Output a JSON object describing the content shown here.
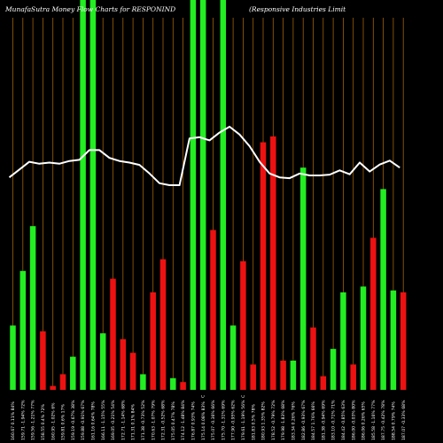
{
  "header": {
    "title_left": "MunafaSutra  Money Flow  Charts for RESPONIND",
    "title_right": "(Responsive   Industries Limit"
  },
  "chart_data": {
    "type": "bar",
    "title": "MunafaSutra Money Flow Charts for RESPONIND (Responsive Industries Limit",
    "colors": {
      "up": "#22ee22",
      "down": "#ee1111",
      "line": "#ffffff",
      "grid": "#a0620a",
      "background": "#000000"
    },
    "ylim": [
      0,
      100
    ],
    "bars": [
      {
        "label": "160.67 0.11% 84%",
        "value": 16.5,
        "dir": "up"
      },
      {
        "label": "159.71 -1.94% 72%",
        "value": 30.5,
        "dir": "up"
      },
      {
        "label": "159.56 -1.21% 77%",
        "value": 42.0,
        "dir": "up"
      },
      {
        "label": "158.55 0.4% 72%",
        "value": 15.0,
        "dir": "down"
      },
      {
        "label": "160.95 -1.02% 6%",
        "value": 1.0,
        "dir": "down"
      },
      {
        "label": "159.81 0.6% 17%",
        "value": 4.0,
        "dir": "down"
      },
      {
        "label": "159.19 -0.67% 38%",
        "value": 8.5,
        "dir": "up"
      },
      {
        "label": "159.88 -0.91% 67%",
        "value": 100,
        "dir": "up"
      },
      {
        "label": "161.16 0.64% 78%",
        "value": 100,
        "dir": "up"
      },
      {
        "label": "166.11 -1.15% 55%",
        "value": 14.5,
        "dir": "up"
      },
      {
        "label": "169.05 -0.21% 54%",
        "value": 28.5,
        "dir": "down"
      },
      {
        "label": "172.71 -1.14% 68%",
        "value": 13.0,
        "dir": "down"
      },
      {
        "label": "171.31 0.1% 84%",
        "value": 9.5,
        "dir": "down"
      },
      {
        "label": "171.38 -0.73% 52%",
        "value": 4.0,
        "dir": "up"
      },
      {
        "label": "170.63 -1.07% 79%",
        "value": 25.0,
        "dir": "down"
      },
      {
        "label": "172.31 -0.52% 68%",
        "value": 33.5,
        "dir": "down"
      },
      {
        "label": "175.05 0.47% 78%",
        "value": 3.0,
        "dir": "up"
      },
      {
        "label": "174.12 -1.48% 84%",
        "value": 2.0,
        "dir": "down"
      },
      {
        "label": "176.87 0.93% 74%",
        "value": 100,
        "dir": "up"
      },
      {
        "label": "175.14 0.08% 83%",
        "value": 100,
        "dir": "up"
      },
      {
        "label": "175.07 -0.36% 66%",
        "value": 41.0,
        "dir": "down"
      },
      {
        "label": "175.70 -1.31% 69%",
        "value": 100,
        "dir": "up"
      },
      {
        "label": "177.90 -0.95% 62%",
        "value": 16.5,
        "dir": "up"
      },
      {
        "label": "179.61 -1.19% 56%",
        "value": 33.0,
        "dir": "down"
      },
      {
        "label": "181.83 0.5% 78%",
        "value": 6.5,
        "dir": "down"
      },
      {
        "label": "180.93 1.35% 82%",
        "value": 63.5,
        "dir": "down"
      },
      {
        "label": "178.52 -0.79% 72%",
        "value": 65.0,
        "dir": "down"
      },
      {
        "label": "179.98 -1.83% 68%",
        "value": 7.5,
        "dir": "down"
      },
      {
        "label": "183.34 0.26% 76%",
        "value": 7.5,
        "dir": "up"
      },
      {
        "label": "182.86 -0.93% 67%",
        "value": 57.0,
        "dir": "up"
      },
      {
        "label": "184.57 1.76% 66%",
        "value": 16.0,
        "dir": "down"
      },
      {
        "label": "181.38 -0.94% 69%",
        "value": 3.5,
        "dir": "down"
      },
      {
        "label": "183.10 -0.71% 71%",
        "value": 10.5,
        "dir": "up"
      },
      {
        "label": "184.42 -0.85% 63%",
        "value": 25.0,
        "dir": "up"
      },
      {
        "label": "186.00 -0.03% 80%",
        "value": 6.5,
        "dir": "down"
      },
      {
        "label": "186.06 0.26% 65%",
        "value": 26.5,
        "dir": "up"
      },
      {
        "label": "185.58 -1.16% 77%",
        "value": 39.0,
        "dir": "down"
      },
      {
        "label": "187.75 -0.42% 78%",
        "value": 51.5,
        "dir": "up"
      },
      {
        "label": "188.54 0.79% 74%",
        "value": 25.5,
        "dir": "up"
      },
      {
        "label": "187.07 -0.33% 68%",
        "value": 25.0,
        "dir": "down"
      }
    ],
    "price_line": [
      54.5,
      56.5,
      58.5,
      58,
      58.3,
      58,
      58.7,
      59,
      61.5,
      61.5,
      59.5,
      58.7,
      58.3,
      57.7,
      55.5,
      53,
      52.5,
      52.5,
      64.5,
      64.8,
      64,
      66,
      67.5,
      65.5,
      62.5,
      58.5,
      55.5,
      54.5,
      54.3,
      55.5,
      55,
      55,
      55.2,
      56.3,
      55.3,
      58.3,
      56,
      57.8,
      58.8,
      57
    ],
    "mid_labels": [
      "C",
      "C"
    ]
  }
}
